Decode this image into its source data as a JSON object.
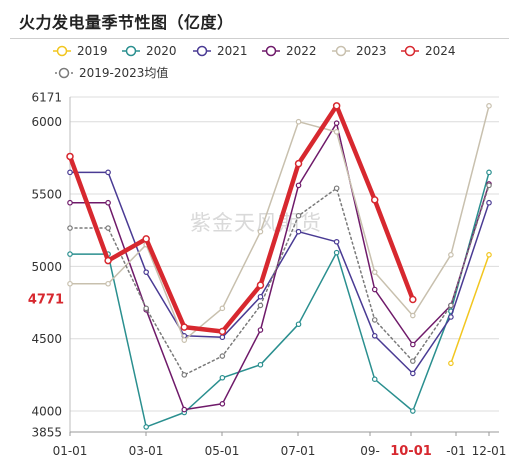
{
  "title": "火力发电量季节性图（亿度）",
  "watermark": "紫金天风期货",
  "colors": {
    "2019": "#f2c61f",
    "2020": "#2a8f8f",
    "2021": "#4a3b94",
    "2022": "#6f1a6a",
    "2023": "#c8c0ae",
    "2024": "#d7282f",
    "avg": "#7a7a7a"
  },
  "chart_data": {
    "type": "line",
    "title": "火力发电量季节性图（亿度）",
    "xlabel": "",
    "ylabel": "",
    "ylim": [
      3855,
      6171
    ],
    "x_ticks": [
      "01-01",
      "03-01",
      "05-01",
      "07-01",
      "09-",
      "10-01",
      "-01",
      "12-01"
    ],
    "y_ticks": [
      3855,
      4000,
      4500,
      4771,
      5000,
      5500,
      6000,
      6171
    ],
    "highlight_x_tick": "10-01",
    "highlight_y_tick": 4771,
    "legend_position": "top",
    "grid": "horizontal",
    "series": [
      {
        "name": "2019",
        "key": "2019",
        "width": 1.5,
        "dashed": false,
        "points": [
          [
            "11-01",
            4330
          ],
          [
            "12-01",
            5080
          ]
        ]
      },
      {
        "name": "2020",
        "key": "2020",
        "width": 1.5,
        "dashed": false,
        "points": [
          [
            "01-01",
            5085
          ],
          [
            "02-01",
            5085
          ],
          [
            "03-01",
            3890
          ],
          [
            "04-01",
            3990
          ],
          [
            "05-01",
            4230
          ],
          [
            "06-01",
            4320
          ],
          [
            "07-01",
            4600
          ],
          [
            "08-01",
            5095
          ],
          [
            "09-01",
            4220
          ],
          [
            "10-01",
            4000
          ],
          [
            "11-01",
            4690
          ],
          [
            "12-01",
            5650
          ]
        ]
      },
      {
        "name": "2021",
        "key": "2021",
        "width": 1.5,
        "dashed": false,
        "points": [
          [
            "01-01",
            5650
          ],
          [
            "02-01",
            5650
          ],
          [
            "03-01",
            4960
          ],
          [
            "04-01",
            4520
          ],
          [
            "05-01",
            4510
          ],
          [
            "06-01",
            4790
          ],
          [
            "07-01",
            5240
          ],
          [
            "08-01",
            5170
          ],
          [
            "09-01",
            4520
          ],
          [
            "10-01",
            4260
          ],
          [
            "11-01",
            4650
          ],
          [
            "12-01",
            5440
          ]
        ]
      },
      {
        "name": "2022",
        "key": "2022",
        "width": 1.5,
        "dashed": false,
        "points": [
          [
            "01-01",
            5440
          ],
          [
            "02-01",
            5440
          ],
          [
            "03-01",
            4700
          ],
          [
            "04-01",
            4010
          ],
          [
            "05-01",
            4050
          ],
          [
            "06-01",
            4560
          ],
          [
            "07-01",
            5560
          ],
          [
            "08-01",
            5990
          ],
          [
            "09-01",
            4840
          ],
          [
            "10-01",
            4460
          ],
          [
            "11-01",
            4730
          ],
          [
            "12-01",
            5570
          ]
        ]
      },
      {
        "name": "2023",
        "key": "2023",
        "width": 1.5,
        "dashed": false,
        "points": [
          [
            "01-01",
            4880
          ],
          [
            "02-01",
            4880
          ],
          [
            "03-01",
            5150
          ],
          [
            "04-01",
            4490
          ],
          [
            "05-01",
            4710
          ],
          [
            "06-01",
            5240
          ],
          [
            "07-01",
            6000
          ],
          [
            "08-01",
            5930
          ],
          [
            "09-01",
            4960
          ],
          [
            "10-01",
            4660
          ],
          [
            "11-01",
            5080
          ],
          [
            "12-01",
            6110
          ]
        ]
      },
      {
        "name": "2024",
        "key": "2024",
        "width": 4.5,
        "dashed": false,
        "points": [
          [
            "01-01",
            5760
          ],
          [
            "02-01",
            5040
          ],
          [
            "03-01",
            5190
          ],
          [
            "04-01",
            4580
          ],
          [
            "05-01",
            4550
          ],
          [
            "06-01",
            4870
          ],
          [
            "07-01",
            5710
          ],
          [
            "08-01",
            6110
          ],
          [
            "09-01",
            5460
          ],
          [
            "10-01",
            4771
          ]
        ]
      },
      {
        "name": "2019-2023均值",
        "key": "avg",
        "width": 1.5,
        "dashed": true,
        "points": [
          [
            "01-01",
            5265
          ],
          [
            "02-01",
            5265
          ],
          [
            "03-01",
            4710
          ],
          [
            "04-01",
            4250
          ],
          [
            "05-01",
            4380
          ],
          [
            "06-01",
            4730
          ],
          [
            "07-01",
            5350
          ],
          [
            "08-01",
            5540
          ],
          [
            "09-01",
            4630
          ],
          [
            "10-01",
            4345
          ],
          [
            "11-01",
            4730
          ],
          [
            "12-01",
            5560
          ]
        ]
      }
    ]
  }
}
